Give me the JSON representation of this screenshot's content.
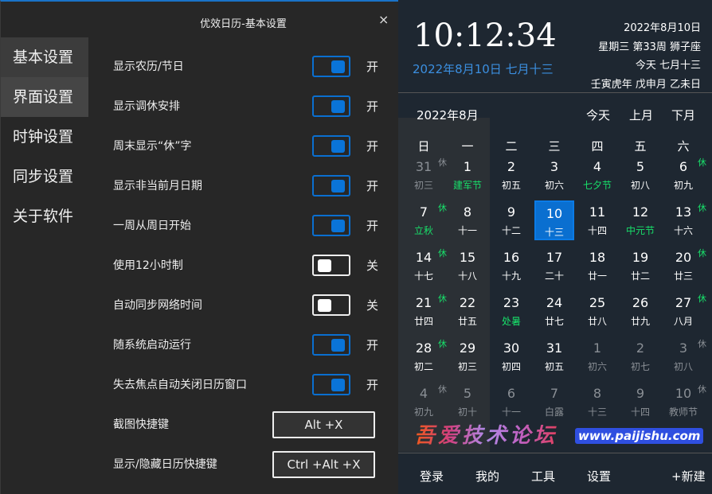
{
  "dialog": {
    "title": "优效日历-基本设置",
    "close": "×",
    "sidebar": [
      {
        "label": "基本设置"
      },
      {
        "label": "界面设置"
      },
      {
        "label": "时钟设置"
      },
      {
        "label": "同步设置"
      },
      {
        "label": "关于软件"
      }
    ],
    "settings": [
      {
        "label": "显示农历/节日",
        "on": true,
        "state": "开"
      },
      {
        "label": "显示调休安排",
        "on": true,
        "state": "开"
      },
      {
        "label": "周末显示“休”字",
        "on": true,
        "state": "开"
      },
      {
        "label": "显示非当前月日期",
        "on": true,
        "state": "开"
      },
      {
        "label": "一周从周日开始",
        "on": true,
        "state": "开"
      },
      {
        "label": "使用12小时制",
        "on": false,
        "state": "关"
      },
      {
        "label": "自动同步网络时间",
        "on": false,
        "state": "关"
      },
      {
        "label": "随系统启动运行",
        "on": true,
        "state": "开"
      },
      {
        "label": "失去焦点自动关闭日历窗口",
        "on": true,
        "state": "开"
      }
    ],
    "hotkeys": [
      {
        "label": "截图快捷键",
        "value": "Alt +X"
      },
      {
        "label": "显示/隐藏日历快捷键",
        "value": "Ctrl +Alt +X"
      }
    ]
  },
  "calendar": {
    "time": "10:12:34",
    "date_lunar": "2022年8月10日 七月十三",
    "info": [
      "2022年8月10日",
      "星期三 第33周 狮子座",
      "今天 七月十三",
      "壬寅虎年 戊申月 乙未日"
    ],
    "month": "2022年8月",
    "nav": [
      "今天",
      "上月",
      "下月"
    ],
    "weekdays": [
      "日",
      "一",
      "二",
      "三",
      "四",
      "五",
      "六"
    ],
    "rest_label": "休",
    "cells": [
      [
        "31",
        "初三",
        "dim",
        0,
        1
      ],
      [
        "1",
        "建军节",
        "",
        1,
        0
      ],
      [
        "2",
        "初五",
        "",
        0,
        0
      ],
      [
        "3",
        "初六",
        "",
        0,
        0
      ],
      [
        "4",
        "七夕节",
        "",
        1,
        0
      ],
      [
        "5",
        "初八",
        "",
        0,
        0
      ],
      [
        "6",
        "初九",
        "",
        0,
        1
      ],
      [
        "7",
        "立秋",
        "",
        1,
        1
      ],
      [
        "8",
        "十一",
        "",
        0,
        0
      ],
      [
        "9",
        "十二",
        "",
        0,
        0
      ],
      [
        "10",
        "十三",
        "today",
        0,
        0
      ],
      [
        "11",
        "十四",
        "",
        0,
        0
      ],
      [
        "12",
        "中元节",
        "",
        1,
        0
      ],
      [
        "13",
        "十六",
        "",
        0,
        1
      ],
      [
        "14",
        "十七",
        "",
        0,
        1
      ],
      [
        "15",
        "十八",
        "",
        0,
        0
      ],
      [
        "16",
        "十九",
        "",
        0,
        0
      ],
      [
        "17",
        "二十",
        "",
        0,
        0
      ],
      [
        "18",
        "廿一",
        "",
        0,
        0
      ],
      [
        "19",
        "廿二",
        "",
        0,
        0
      ],
      [
        "20",
        "廿三",
        "",
        0,
        1
      ],
      [
        "21",
        "廿四",
        "",
        0,
        1
      ],
      [
        "22",
        "廿五",
        "",
        0,
        0
      ],
      [
        "23",
        "处暑",
        "",
        1,
        0
      ],
      [
        "24",
        "廿七",
        "",
        0,
        0
      ],
      [
        "25",
        "廿八",
        "",
        0,
        0
      ],
      [
        "26",
        "廿九",
        "",
        0,
        0
      ],
      [
        "27",
        "八月",
        "",
        0,
        1
      ],
      [
        "28",
        "初二",
        "",
        0,
        1
      ],
      [
        "29",
        "初三",
        "",
        0,
        0
      ],
      [
        "30",
        "初四",
        "",
        0,
        0
      ],
      [
        "31",
        "初五",
        "",
        0,
        0
      ],
      [
        "1",
        "初六",
        "dim",
        0,
        0
      ],
      [
        "2",
        "初七",
        "dim",
        0,
        0
      ],
      [
        "3",
        "初八",
        "dim",
        0,
        1
      ],
      [
        "4",
        "初九",
        "dim",
        0,
        1
      ],
      [
        "5",
        "初十",
        "dim",
        0,
        0
      ],
      [
        "6",
        "十一",
        "dim",
        0,
        0
      ],
      [
        "7",
        "白露",
        "dim",
        0,
        0
      ],
      [
        "8",
        "十三",
        "dim",
        0,
        0
      ],
      [
        "9",
        "十四",
        "dim",
        0,
        0
      ],
      [
        "10",
        "教师节",
        "dim",
        0,
        1
      ]
    ],
    "bottom": [
      "登录",
      "我的",
      "工具",
      "设置",
      "+新建"
    ]
  },
  "watermark": {
    "text": "吾爱技术论坛",
    "url": "www.paijishu.com"
  },
  "colors": {
    "accent": "#0a74d8",
    "festival": "#18e06a",
    "lunar_blue": "#3b8fe0"
  }
}
